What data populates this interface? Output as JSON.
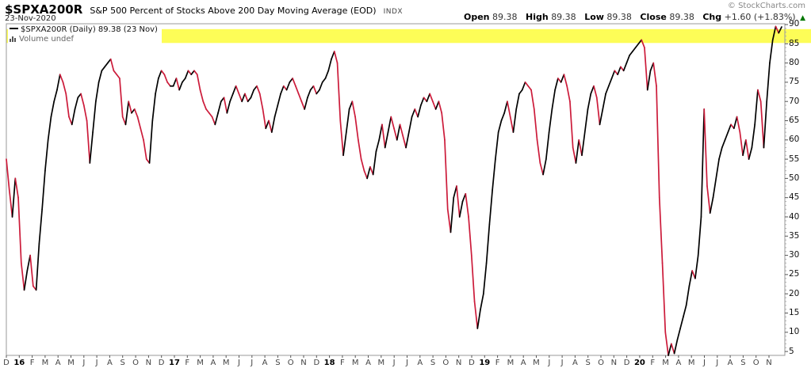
{
  "header": {
    "symbol": "$SPXA200R",
    "description": "S&P 500 Percent of Stocks Above 200 Day Moving Average (EOD)",
    "exchange": "INDX",
    "date": "23-Nov-2020",
    "copyright": "© StockCharts.com"
  },
  "quote": {
    "items": [
      {
        "label": "Open",
        "value": "89.38"
      },
      {
        "label": "High",
        "value": "89.38"
      },
      {
        "label": "Low",
        "value": "89.38"
      },
      {
        "label": "Close",
        "value": "89.38"
      },
      {
        "label": "Chg",
        "value": "+1.60 (+1.83%)"
      }
    ],
    "direction_arrow": "▲",
    "arrow_color": "#007700"
  },
  "legend": {
    "series_label": "$SPXA200R (Daily) 89.38 (23 Nov)",
    "volume_label": "Volume undef"
  },
  "chart_data": {
    "type": "line",
    "series_name": "$SPXA200R",
    "timeframe": "Daily",
    "last_value": 89.38,
    "last_date": "23 Nov",
    "ylabel": "Percent of stocks above 200-day MA",
    "ylim": [
      4.0,
      90.2
    ],
    "y_ticks": [
      5,
      10,
      15,
      20,
      25,
      30,
      35,
      40,
      45,
      50,
      55,
      60,
      65,
      70,
      75,
      80,
      85,
      90
    ],
    "x_labels": [
      "D",
      "16",
      "F",
      "M",
      "A",
      "M",
      "J",
      "J",
      "A",
      "S",
      "O",
      "N",
      "D",
      "17",
      "F",
      "M",
      "A",
      "M",
      "J",
      "J",
      "A",
      "S",
      "O",
      "N",
      "D",
      "18",
      "F",
      "M",
      "A",
      "M",
      "J",
      "J",
      "A",
      "S",
      "O",
      "N",
      "D",
      "19",
      "F",
      "M",
      "A",
      "M",
      "J",
      "J",
      "A",
      "S",
      "O",
      "N",
      "D",
      "20",
      "F",
      "M",
      "A",
      "M",
      "J",
      "J",
      "A",
      "S",
      "O",
      "N"
    ],
    "x_bold_labels": [
      "16",
      "17",
      "18",
      "19",
      "20"
    ],
    "grid": false,
    "legend_position": "top-left",
    "highlight_band": {
      "from": 85.2,
      "to": 88.8
    },
    "colors": {
      "up": "#000000",
      "down": "#cc1b3a",
      "band": "#fdfd57",
      "frame": "#999999",
      "tick": "#555555"
    },
    "values": [
      55,
      47,
      40,
      50,
      45,
      28,
      21,
      26,
      30,
      22,
      21,
      33,
      42,
      52,
      60,
      66,
      70,
      73,
      77,
      75,
      72,
      66,
      64,
      68,
      71,
      72,
      69,
      65,
      54,
      62,
      70,
      75,
      78,
      79,
      80,
      81,
      78,
      77,
      76,
      66,
      64,
      70,
      67,
      68,
      66,
      63,
      60,
      55,
      54,
      65,
      72,
      76,
      78,
      77,
      75,
      74,
      74,
      76,
      73,
      75,
      76,
      78,
      77,
      78,
      77,
      73,
      70,
      68,
      67,
      66,
      64,
      67,
      70,
      71,
      67,
      70,
      72,
      74,
      72,
      70,
      72,
      70,
      71,
      73,
      74,
      72,
      68,
      63,
      65,
      62,
      66,
      69,
      72,
      74,
      73,
      75,
      76,
      74,
      72,
      70,
      68,
      71,
      73,
      74,
      72,
      73,
      75,
      76,
      78,
      81,
      83,
      80,
      65,
      56,
      62,
      68,
      70,
      66,
      60,
      55,
      52,
      50,
      53,
      51,
      57,
      60,
      64,
      58,
      62,
      66,
      63,
      60,
      64,
      61,
      58,
      62,
      66,
      68,
      66,
      69,
      71,
      70,
      72,
      70,
      68,
      70,
      67,
      60,
      42,
      36,
      45,
      48,
      40,
      44,
      46,
      40,
      30,
      18,
      11,
      16,
      20,
      28,
      38,
      47,
      55,
      62,
      65,
      67,
      70,
      66,
      62,
      68,
      72,
      73,
      75,
      74,
      73,
      68,
      60,
      54,
      51,
      55,
      62,
      68,
      73,
      76,
      75,
      77,
      74,
      70,
      58,
      54,
      60,
      56,
      62,
      68,
      72,
      74,
      71,
      64,
      68,
      72,
      74,
      76,
      78,
      77,
      79,
      78,
      80,
      82,
      83,
      84,
      85,
      86,
      84,
      73,
      78,
      80,
      74,
      45,
      28,
      10,
      4,
      7,
      4.5,
      8,
      11,
      14,
      17,
      22,
      26,
      24,
      30,
      40,
      68,
      48,
      41,
      45,
      50,
      55,
      58,
      60,
      62,
      64,
      63,
      66,
      62,
      56,
      60,
      55,
      58,
      64,
      73,
      70,
      58,
      70,
      80,
      86,
      89.5,
      87.8,
      89.38
    ]
  }
}
